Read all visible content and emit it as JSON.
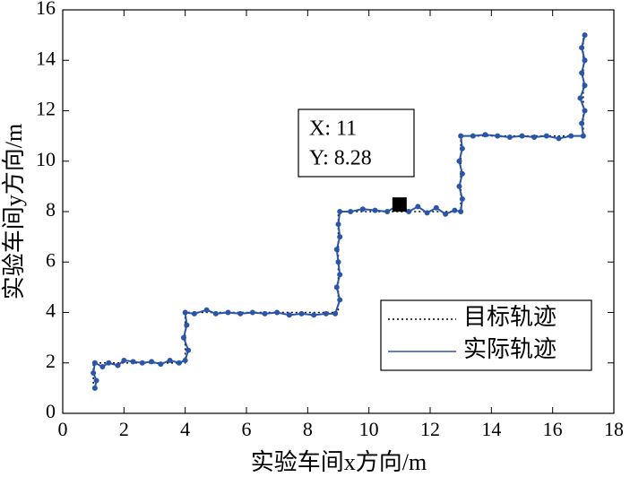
{
  "chart_data": {
    "type": "line",
    "xlabel": "实验车间x方向/m",
    "ylabel": "实验车间y方向/m",
    "xlim": [
      0,
      18
    ],
    "ylim": [
      0,
      16
    ],
    "xticks": [
      0,
      2,
      4,
      6,
      8,
      10,
      12,
      14,
      16,
      18
    ],
    "yticks": [
      0,
      2,
      4,
      6,
      8,
      10,
      12,
      14,
      16
    ],
    "legend": "lower right",
    "series": [
      {
        "name": "目标轨迹",
        "color": "#000000",
        "style": "dotted",
        "x": [
          1,
          1,
          4,
          4,
          9,
          9,
          13,
          13,
          17,
          17
        ],
        "values": [
          1,
          2,
          2,
          4,
          4,
          8,
          8,
          11,
          11,
          15
        ]
      },
      {
        "name": "实际轨迹",
        "color": "#2a55a8",
        "style": "solid",
        "markers": true,
        "x": [
          1.05,
          1.1,
          1.0,
          1.05,
          1.3,
          1.5,
          1.8,
          2.0,
          2.3,
          2.6,
          2.9,
          3.2,
          3.5,
          3.8,
          4.0,
          4.1,
          3.95,
          4.05,
          4.0,
          4.3,
          4.7,
          5.0,
          5.4,
          5.8,
          6.2,
          6.6,
          7.0,
          7.4,
          7.8,
          8.2,
          8.6,
          8.9,
          9.05,
          8.95,
          9.05,
          9.0,
          8.95,
          9.05,
          9.0,
          9.05,
          9.4,
          9.8,
          10.2,
          10.6,
          11.0,
          11.3,
          11.6,
          11.9,
          12.2,
          12.5,
          12.8,
          13.0,
          13.05,
          12.95,
          13.05,
          12.95,
          13.05,
          13.0,
          13.4,
          13.8,
          14.2,
          14.6,
          15.0,
          15.4,
          15.8,
          16.2,
          16.6,
          17.0,
          16.95,
          17.05,
          16.9,
          17.05,
          16.95,
          17.05,
          16.95,
          17.05
        ],
        "values": [
          1.0,
          1.3,
          1.6,
          2.0,
          1.85,
          2.0,
          1.9,
          2.1,
          2.05,
          2.0,
          2.05,
          1.95,
          2.1,
          2.0,
          2.1,
          2.5,
          3.0,
          3.5,
          4.0,
          3.95,
          4.1,
          3.95,
          4.0,
          3.95,
          4.0,
          3.95,
          4.0,
          3.9,
          3.95,
          3.9,
          3.95,
          3.95,
          4.5,
          5.0,
          5.5,
          6.0,
          6.5,
          7.0,
          7.5,
          8.0,
          8.0,
          8.1,
          8.05,
          8.0,
          8.28,
          8.0,
          8.2,
          7.95,
          8.15,
          7.9,
          8.05,
          8.0,
          8.5,
          9.0,
          9.5,
          10.0,
          10.5,
          11.0,
          11.0,
          11.05,
          11.0,
          10.95,
          11.0,
          10.95,
          11.0,
          10.9,
          11.0,
          11.0,
          11.5,
          12.0,
          12.5,
          13.0,
          13.5,
          14.0,
          14.5,
          15.0
        ]
      }
    ],
    "datatip": {
      "x": 11,
      "y": 8.28,
      "x_label": "X: 11",
      "y_label": "Y: 8.28"
    }
  }
}
